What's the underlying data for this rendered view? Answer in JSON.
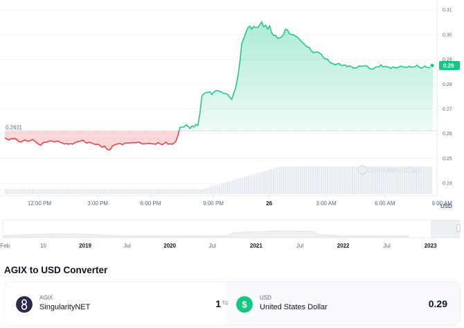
{
  "chart_data": {
    "type": "area",
    "series": [
      {
        "values": [
          0.2583,
          0.2578,
          0.2574,
          0.258,
          0.2579,
          0.2581,
          0.2575,
          0.2568,
          0.2566,
          0.257,
          0.2575,
          0.2571,
          0.2569,
          0.2573,
          0.2576,
          0.257,
          0.2563,
          0.2557,
          0.2553,
          0.2562,
          0.2566,
          0.2565,
          0.2569,
          0.2571,
          0.2569,
          0.2566,
          0.2569,
          0.257,
          0.2564,
          0.2562,
          0.2558,
          0.256,
          0.2557,
          0.256,
          0.2557,
          0.2562,
          0.2566,
          0.2568,
          0.257,
          0.2574,
          0.2568,
          0.2562,
          0.2565,
          0.2564,
          0.2561,
          0.2557,
          0.2557,
          0.2557,
          0.255,
          0.2545,
          0.255,
          0.254,
          0.2534,
          0.2536,
          0.255,
          0.2554,
          0.2557,
          0.2559,
          0.256,
          0.2555,
          0.256,
          0.2563,
          0.2561,
          0.2563,
          0.2563,
          0.2564,
          0.2563,
          0.2566,
          0.2563,
          0.2558,
          0.2559,
          0.2559,
          0.2561,
          0.256,
          0.2559,
          0.2558,
          0.2558,
          0.2564,
          0.2559,
          0.2555,
          0.256,
          0.2566,
          0.2557,
          0.2559,
          0.2557,
          0.2561,
          0.2571,
          0.2594,
          0.2625,
          0.2627,
          0.2627,
          0.2636,
          0.263,
          0.2621,
          0.2631,
          0.2627,
          0.2637,
          0.2633,
          0.2683,
          0.2753,
          0.2761,
          0.2766,
          0.2767,
          0.2769,
          0.2758,
          0.2768,
          0.2773,
          0.2774,
          0.277,
          0.2767,
          0.2761,
          0.2762,
          0.2758,
          0.2746,
          0.2738,
          0.2764,
          0.2786,
          0.2827,
          0.2885,
          0.2963,
          0.2984,
          0.3007,
          0.3026,
          0.3034,
          0.3022,
          0.3033,
          0.3028,
          0.3029,
          0.3039,
          0.3051,
          0.3031,
          0.3038,
          0.3022,
          0.3035,
          0.3008,
          0.2996,
          0.2997,
          0.2985,
          0.2987,
          0.299,
          0.3001,
          0.3022,
          0.3018,
          0.3003,
          0.3,
          0.2999,
          0.2994,
          0.2989,
          0.2981,
          0.2971,
          0.2966,
          0.2956,
          0.295,
          0.2947,
          0.2934,
          0.2927,
          0.2929,
          0.293,
          0.2926,
          0.292,
          0.2908,
          0.2901,
          0.2902,
          0.289,
          0.2884,
          0.2882,
          0.2877,
          0.2882,
          0.2883,
          0.2875,
          0.2876,
          0.2877,
          0.287,
          0.2874,
          0.2871,
          0.2865,
          0.2865,
          0.2867,
          0.2874,
          0.2872,
          0.2873,
          0.2874,
          0.2873,
          0.2864,
          0.2861,
          0.2861,
          0.2868,
          0.287,
          0.287,
          0.2878,
          0.2869,
          0.2871,
          0.287,
          0.2868,
          0.2863,
          0.287,
          0.2866,
          0.2866,
          0.2869,
          0.2873,
          0.2869,
          0.2869,
          0.2867,
          0.2872,
          0.2869,
          0.2869,
          0.287,
          0.2876,
          0.287,
          0.2864,
          0.2867,
          0.2873,
          0.2868,
          0.2866,
          0.287,
          0.2875
        ],
        "baseline": 0.2611,
        "color_above": "#16c784",
        "color_below": "#ea3943"
      }
    ],
    "ylim": [
      0.235,
      0.312
    ],
    "y_ticks": [
      "0.31",
      "0.30",
      "0.29",
      "0.28",
      "0.27",
      "0.26",
      "0.25",
      "0.24"
    ],
    "y_tick_values": [
      0.31,
      0.3,
      0.29,
      0.28,
      0.27,
      0.26,
      0.25,
      0.24
    ],
    "x_ticks": [
      {
        "label": "12:00 PM",
        "pos": 0.085
      },
      {
        "label": "3:00 PM",
        "pos": 0.2107
      },
      {
        "label": "6:00 PM",
        "pos": 0.3246
      },
      {
        "label": "9:00 PM",
        "pos": 0.4598
      },
      {
        "label": "26",
        "pos": 0.5801,
        "bold": true
      },
      {
        "label": "3:00 AM",
        "pos": 0.7031
      },
      {
        "label": "6:00 AM",
        "pos": 0.8296
      },
      {
        "label": "9:00 AM",
        "pos": 0.9526
      }
    ],
    "volume": [
      0.18,
      0.18,
      0.18,
      0.18,
      0.18,
      0.18,
      0.18,
      0.18,
      0.18,
      0.18,
      0.18,
      0.18,
      0.18,
      0.18,
      0.18,
      0.18,
      0.18,
      0.18,
      0.18,
      0.18,
      0.18,
      0.18,
      0.18,
      0.18,
      0.18,
      0.18,
      0.18,
      0.18,
      0.18,
      0.18,
      0.18,
      0.18,
      0.18,
      0.18,
      0.18,
      0.18,
      0.18,
      0.18,
      0.18,
      0.18,
      0.18,
      0.18,
      0.18,
      0.18,
      0.18,
      0.18,
      0.18,
      0.18,
      0.18,
      0.18,
      0.18,
      0.18,
      0.18,
      0.18,
      0.18,
      0.18,
      0.18,
      0.18,
      0.18,
      0.18,
      0.18,
      0.18,
      0.18,
      0.18,
      0.18,
      0.18,
      0.18,
      0.18,
      0.18,
      0.18,
      0.18,
      0.18,
      0.18,
      0.18,
      0.18,
      0.18,
      0.18,
      0.18,
      0.18,
      0.18,
      0.18,
      0.18,
      0.18,
      0.18,
      0.18,
      0.18,
      0.18,
      0.18,
      0.18,
      0.18,
      0.18,
      0.18,
      0.18,
      0.18,
      0.18,
      0.18,
      0.18,
      0.18,
      0.18,
      0.18,
      0.18,
      0.18,
      0.18,
      0.2,
      0.22,
      0.24,
      0.26,
      0.28,
      0.3,
      0.32,
      0.34,
      0.36,
      0.38,
      0.4,
      0.42,
      0.44,
      0.46,
      0.48,
      0.5,
      0.52,
      0.54,
      0.56,
      0.58,
      0.6,
      0.62,
      0.64,
      0.66,
      0.68,
      0.7,
      0.72,
      0.74,
      0.76,
      0.78,
      0.8,
      0.82,
      0.84,
      0.86,
      0.88,
      0.9,
      0.92,
      0.94,
      0.96,
      0.98,
      1.0,
      1.0,
      1.0,
      1.0,
      1.0,
      1.0,
      1.0,
      1.0,
      1.0,
      1.0,
      1.0,
      1.0,
      1.0,
      1.0,
      1.0,
      1.0,
      1.0,
      1.0,
      1.0,
      1.0,
      1.0,
      1.0,
      1.0,
      1.0,
      1.0,
      1.0,
      1.0,
      1.0,
      1.0,
      1.0,
      1.0,
      1.0,
      1.0,
      1.0,
      1.0,
      1.0,
      1.0,
      1.0,
      1.0,
      1.0,
      1.0,
      1.0,
      1.0,
      1.0,
      1.0,
      1.0,
      1.0,
      1.0,
      1.0,
      1.0,
      1.0,
      1.0,
      1.0,
      1.0,
      1.0,
      1.0,
      1.0,
      1.0,
      1.0,
      1.0,
      1.0,
      1.0,
      1.0,
      1.0,
      1.0,
      1.0,
      1.0,
      1.0,
      1.0,
      1.0,
      1.0,
      1.0,
      1.0,
      1.0,
      1.0,
      1.0,
      1.0,
      1.0,
      1.0
    ],
    "current_price_label": "0.29",
    "baseline_label": "0.2611",
    "unit": "USD",
    "watermark": "CoinMarketCap",
    "grid": true,
    "navigator": {
      "ticks": [
        {
          "label": "Feb",
          "pos": 0.0107
        },
        {
          "label": "10",
          "pos": 0.0934
        },
        {
          "label": "2019",
          "pos": 0.1837,
          "bold": true
        },
        {
          "label": "Jul",
          "pos": 0.2741
        },
        {
          "label": "2020",
          "pos": 0.3659,
          "bold": true
        },
        {
          "label": "Jul",
          "pos": 0.4579
        },
        {
          "label": "2021",
          "pos": 0.5521,
          "bold": true
        },
        {
          "label": "Jul",
          "pos": 0.6463
        },
        {
          "label": "2022",
          "pos": 0.7397,
          "bold": true
        },
        {
          "label": "Jul",
          "pos": 0.834
        },
        {
          "label": "2023",
          "pos": 0.9278,
          "bold": true
        }
      ]
    }
  },
  "converter": {
    "title": "AGIX to USD Converter",
    "from": {
      "symbol": "AGIX",
      "name": "SingularityNET",
      "amount": "1",
      "logo": "singularitynet-logo",
      "logo_color": "#2a2a4a"
    },
    "to": {
      "symbol": "USD",
      "name": "United States Dollar",
      "amount": "0.29",
      "logo": "dollar-sign-icon",
      "logo_color": "#16c784"
    },
    "swap_icon": "swap-arrows-icon"
  }
}
